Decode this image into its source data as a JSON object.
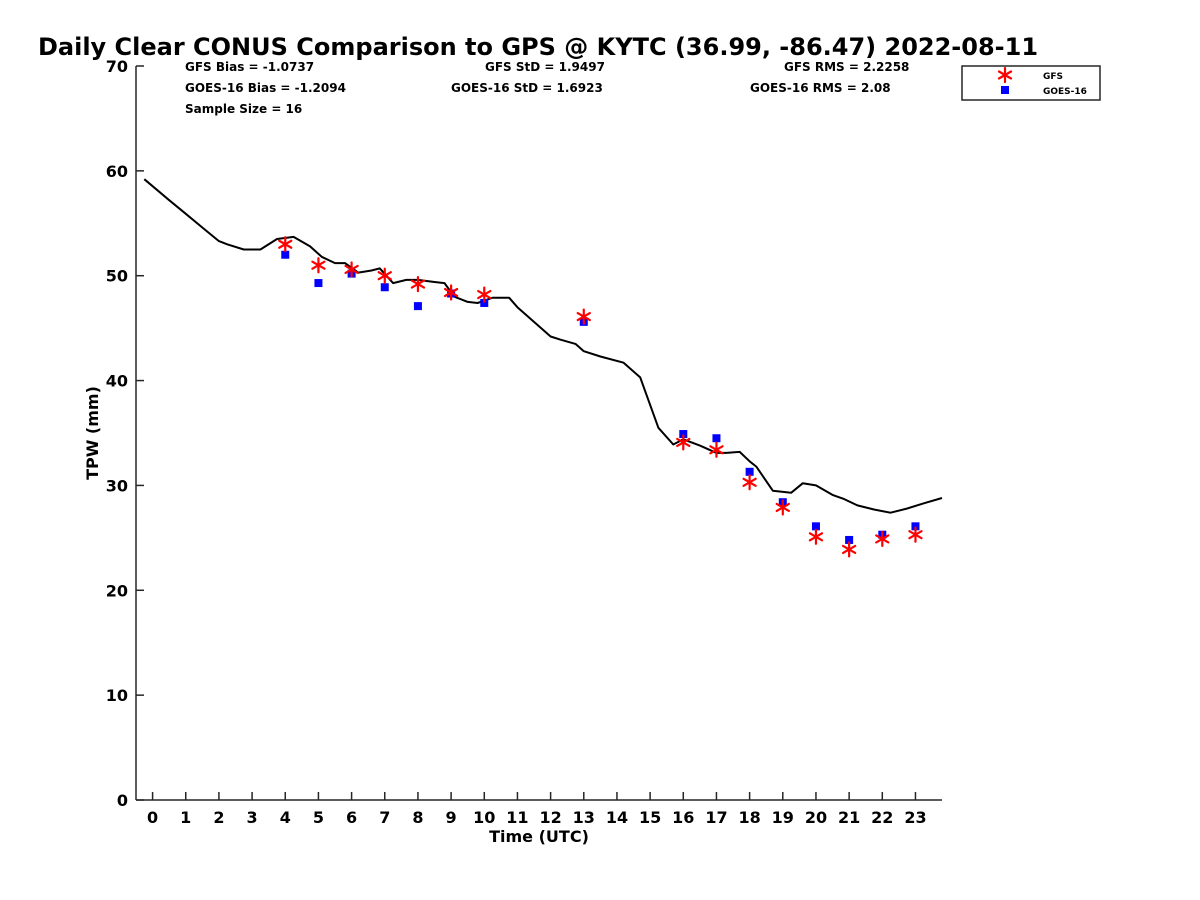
{
  "chart_data": {
    "type": "scatter",
    "title": "Daily Clear CONUS Comparison to GPS @ KYTC (36.99, -86.47) 2022-08-11",
    "xlabel": "Time (UTC)",
    "ylabel": "TPW (mm)",
    "xlim": [
      -0.5,
      23.8
    ],
    "ylim": [
      0,
      70
    ],
    "xticks": [
      0,
      1,
      2,
      3,
      4,
      5,
      6,
      7,
      8,
      9,
      10,
      11,
      12,
      13,
      14,
      15,
      16,
      17,
      18,
      19,
      20,
      21,
      22,
      23
    ],
    "yticks": [
      0,
      10,
      20,
      30,
      40,
      50,
      60,
      70
    ],
    "grid": false,
    "legend_position": "top-right",
    "stats": {
      "gfs_bias": "GFS Bias = -1.0737",
      "gfs_std": "GFS StD = 1.9497",
      "gfs_rms": "GFS RMS = 2.2258",
      "goes_bias": "GOES-16 Bias = -1.2094",
      "goes_std": "GOES-16 StD = 1.6923",
      "goes_rms": "GOES-16 RMS = 2.08",
      "sample_size": "Sample Size = 16"
    },
    "gps_line": {
      "x": [
        -0.25,
        0.5,
        1,
        1.5,
        2,
        2.25,
        2.75,
        3.25,
        3.75,
        4.25,
        4.75,
        5.1,
        5.5,
        5.8,
        6.2,
        6.6,
        6.85,
        7.25,
        7.65,
        8,
        8.5,
        8.8,
        9.1,
        9.5,
        9.8,
        10.25,
        10.75,
        11,
        11.5,
        12,
        12.3,
        12.75,
        13,
        13.5,
        14.2,
        14.7,
        15.25,
        15.7,
        16,
        16.5,
        17,
        17.3,
        17.7,
        18,
        18.2,
        18.7,
        19.25,
        19.6,
        20,
        20.5,
        20.85,
        21.25,
        21.75,
        22.25,
        22.75,
        23.25,
        23.8
      ],
      "y": [
        59.2,
        57.2,
        55.9,
        54.6,
        53.3,
        53.0,
        52.5,
        52.5,
        53.5,
        53.7,
        52.8,
        51.8,
        51.2,
        51.2,
        50.3,
        50.5,
        50.7,
        49.3,
        49.6,
        49.6,
        49.4,
        49.3,
        48.0,
        47.5,
        47.4,
        47.9,
        47.9,
        47.0,
        45.6,
        44.2,
        43.9,
        43.5,
        42.8,
        42.3,
        41.7,
        40.3,
        35.5,
        33.9,
        34.4,
        33.8,
        33.1,
        33.1,
        33.2,
        32.3,
        31.8,
        29.5,
        29.3,
        30.2,
        30.0,
        29.1,
        28.7,
        28.1,
        27.7,
        27.4,
        27.8,
        28.3,
        28.8
      ]
    },
    "series": [
      {
        "name": "GFS",
        "color": "#ff0000",
        "marker": "asterisk",
        "x": [
          4,
          5,
          6,
          7,
          8,
          9,
          10,
          13,
          16,
          17,
          18,
          19,
          20,
          21,
          22,
          23
        ],
        "y": [
          53.0,
          51.0,
          50.6,
          50.0,
          49.2,
          48.4,
          48.2,
          46.1,
          34.1,
          33.4,
          30.3,
          27.9,
          25.1,
          23.9,
          24.9,
          25.3
        ]
      },
      {
        "name": "GOES-16",
        "color": "#0000ff",
        "marker": "square",
        "x": [
          4,
          5,
          6,
          7,
          8,
          9,
          10,
          13,
          16,
          17,
          18,
          19,
          20,
          21,
          22,
          23
        ],
        "y": [
          52.0,
          49.3,
          50.2,
          48.9,
          47.1,
          48.3,
          47.4,
          45.6,
          34.9,
          34.5,
          31.3,
          28.4,
          26.1,
          24.8,
          25.3,
          26.1
        ]
      }
    ]
  }
}
